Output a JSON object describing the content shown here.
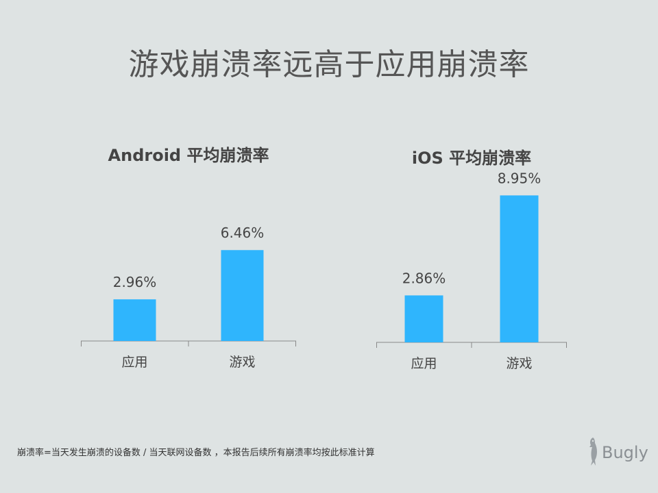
{
  "page_title": "游戏崩溃率远高于应用崩溃率",
  "footnote": "崩溃率=当天发生崩溃的设备数 / 当天联网设备数 ，本报告后续所有崩溃率均按此标准计算",
  "brand": {
    "name": "Bugly",
    "icon": "bird-icon"
  },
  "colors": {
    "bar": "#2fb5fd",
    "axis": "#888888",
    "label": "#444444"
  },
  "chart_data": [
    {
      "type": "bar",
      "title": "Android 平均崩溃率",
      "categories": [
        "应用",
        "游戏"
      ],
      "values": [
        2.96,
        6.46
      ],
      "value_labels": [
        "2.96%",
        "6.46%"
      ],
      "ylim": [
        0,
        10
      ],
      "grid": false,
      "legend": "none"
    },
    {
      "type": "bar",
      "title": "iOS 平均崩溃率",
      "categories": [
        "应用",
        "游戏"
      ],
      "values": [
        2.86,
        8.95
      ],
      "value_labels": [
        "2.86%",
        "8.95%"
      ],
      "ylim": [
        0,
        10
      ],
      "grid": false,
      "legend": "none"
    }
  ]
}
